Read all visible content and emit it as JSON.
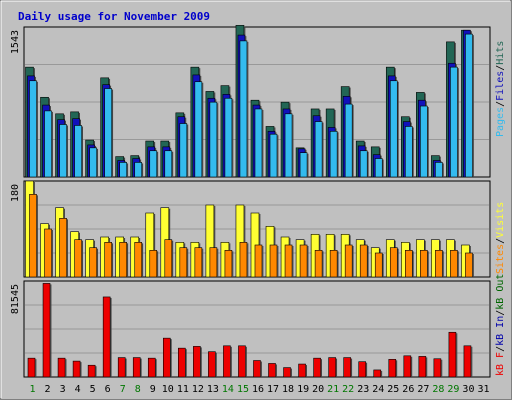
{
  "page": {
    "background": "#c0c0c0",
    "title_color": "#0000cc"
  },
  "chart_data": [
    {
      "type": "bar",
      "title": "Daily usage for November 2009",
      "categories": [
        "1",
        "2",
        "3",
        "4",
        "5",
        "6",
        "7",
        "8",
        "9",
        "10",
        "11",
        "12",
        "13",
        "14",
        "15",
        "16",
        "17",
        "18",
        "19",
        "20",
        "21",
        "22",
        "23",
        "24",
        "25",
        "26",
        "27",
        "28",
        "29",
        "30",
        "31"
      ],
      "weekend_days": [
        "1",
        "7",
        "8",
        "14",
        "15",
        "21",
        "22",
        "28",
        "29"
      ],
      "weekend_color": "#007700",
      "ymax_label": "1543",
      "ylim": [
        0,
        1543
      ],
      "grid": true,
      "series": [
        {
          "name": "Pages",
          "color": "#33bbee",
          "values": [
            990,
            680,
            540,
            530,
            300,
            910,
            150,
            150,
            270,
            270,
            550,
            980,
            770,
            810,
            1400,
            700,
            440,
            650,
            250,
            570,
            470,
            750,
            270,
            190,
            990,
            520,
            730,
            150,
            1130,
            1470,
            0
          ]
        },
        {
          "name": "Files",
          "color": "#1111bb",
          "values": [
            1040,
            740,
            590,
            600,
            330,
            950,
            170,
            190,
            310,
            310,
            620,
            1050,
            810,
            850,
            1460,
            740,
            470,
            700,
            290,
            630,
            510,
            830,
            320,
            230,
            1040,
            570,
            790,
            170,
            1170,
            1510,
            0
          ]
        },
        {
          "name": "Hits",
          "color": "#226655",
          "values": [
            1130,
            820,
            650,
            670,
            380,
            1020,
            210,
            220,
            370,
            370,
            660,
            1130,
            880,
            940,
            1560,
            790,
            520,
            770,
            300,
            700,
            700,
            930,
            370,
            310,
            1130,
            620,
            870,
            220,
            1390,
            1510,
            0
          ]
        }
      ],
      "legend_text": {
        "pages": "Pages",
        "files": "Files",
        "hits": "Hits",
        "sep": "/"
      }
    },
    {
      "type": "bar",
      "ymax_label": "180",
      "ylim": [
        0,
        180
      ],
      "grid": true,
      "series": [
        {
          "name": "Sites",
          "color": "#ff8800",
          "values": [
            155,
            90,
            110,
            70,
            55,
            65,
            65,
            65,
            50,
            70,
            55,
            55,
            55,
            50,
            65,
            60,
            60,
            60,
            60,
            50,
            50,
            60,
            60,
            45,
            55,
            50,
            50,
            50,
            50,
            45,
            0
          ]
        },
        {
          "name": "Visits",
          "color": "#ffff33",
          "values": [
            180,
            100,
            130,
            85,
            70,
            75,
            75,
            75,
            120,
            130,
            65,
            65,
            135,
            65,
            135,
            120,
            95,
            75,
            70,
            80,
            80,
            80,
            70,
            55,
            70,
            65,
            70,
            70,
            70,
            60,
            0
          ]
        }
      ],
      "legend_text": {
        "sites": "Sites",
        "visits": "Visits",
        "sep": "/"
      }
    },
    {
      "type": "bar",
      "ymax_label": "81545",
      "ylim": [
        0,
        81545
      ],
      "grid": true,
      "series": [
        {
          "name": "KBytes",
          "color": "#ee0000",
          "values": [
            16000,
            79500,
            16000,
            13500,
            10000,
            68000,
            16500,
            16500,
            16000,
            33000,
            24500,
            26000,
            21500,
            26500,
            26500,
            14000,
            11500,
            8000,
            11000,
            16000,
            16500,
            16500,
            13000,
            6000,
            15000,
            18000,
            17500,
            15500,
            38000,
            26500,
            0
          ]
        }
      ],
      "legend_text": {
        "kbf": "kB F",
        "kbin": "kB In",
        "kbout": "kB Out",
        "sep": "/"
      }
    }
  ],
  "legend_colors": {
    "pages": "#33bbee",
    "files": "#1111bb",
    "hits": "#226655",
    "sites": "#ff8800",
    "visits": "#ffff33",
    "kbf": "#ee0000",
    "kbin": "#0000aa",
    "kbout": "#006600",
    "sep": "#000000"
  }
}
